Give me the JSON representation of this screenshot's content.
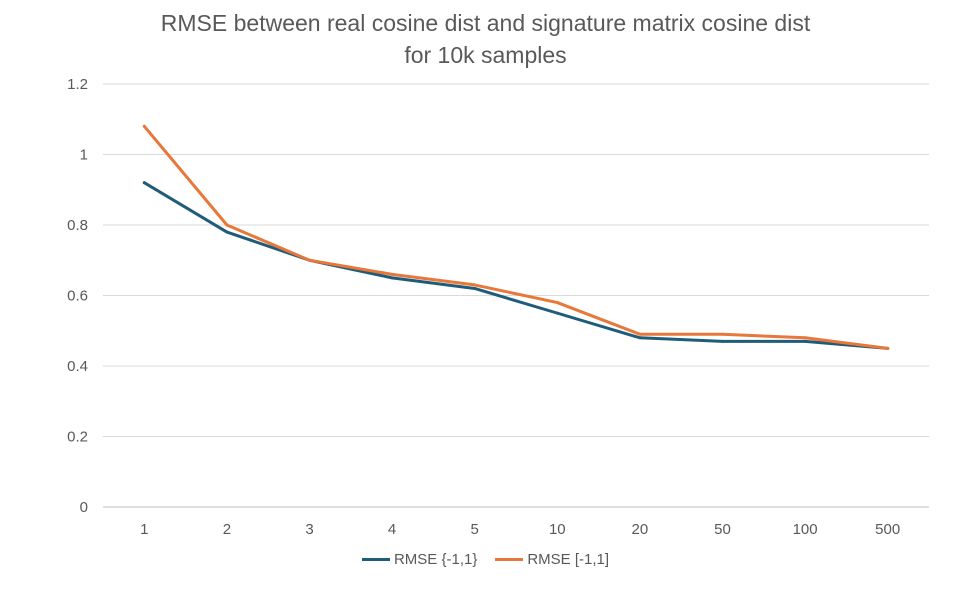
{
  "chart_data": {
    "type": "line",
    "title": "RMSE between real cosine dist and signature matrix cosine dist",
    "subtitle": "for 10k samples",
    "categories": [
      "1",
      "2",
      "3",
      "4",
      "5",
      "10",
      "20",
      "50",
      "100",
      "500"
    ],
    "ylim": [
      0,
      1.2
    ],
    "yticks": [
      "0",
      "0.2",
      "0.4",
      "0.6",
      "0.8",
      "1",
      "1.2"
    ],
    "grid": true,
    "legend_position": "bottom",
    "series": [
      {
        "name": "RMSE {-1,1}",
        "color": "#1f5c7a",
        "values": [
          0.92,
          0.78,
          0.7,
          0.65,
          0.62,
          0.55,
          0.48,
          0.47,
          0.47,
          0.45
        ]
      },
      {
        "name": "RMSE [-1,1]",
        "color": "#e8773a",
        "values": [
          1.08,
          0.8,
          0.7,
          0.66,
          0.63,
          0.58,
          0.49,
          0.49,
          0.48,
          0.45
        ]
      }
    ]
  }
}
